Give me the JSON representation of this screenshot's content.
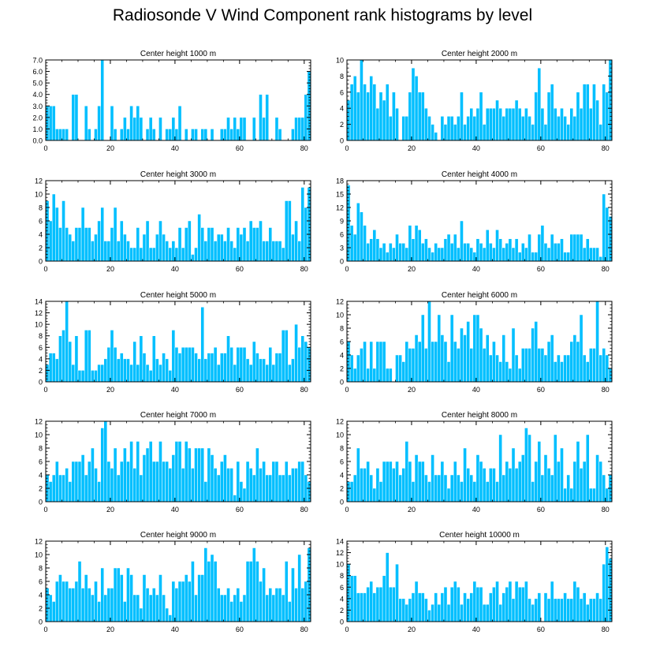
{
  "title": "Radiosonde V Wind Component rank histograms by level",
  "bar_color": "#00BFFF",
  "chart_data": [
    {
      "type": "bar",
      "title": "Center height 1000 m",
      "xlim": [
        0,
        82
      ],
      "xticks": [
        0,
        20,
        40,
        60,
        80
      ],
      "xlabel": "",
      "ylabel": "",
      "ylim": [
        0,
        7
      ],
      "yticks": [
        "0.0",
        "1.0",
        "2.0",
        "3.0",
        "4.0",
        "5.0",
        "6.0",
        "7.0"
      ],
      "values": [
        3,
        3,
        3,
        1,
        1,
        1,
        1,
        0,
        4,
        4,
        0,
        0,
        3,
        1,
        0,
        1,
        3,
        7,
        0,
        0,
        3,
        1,
        0,
        1,
        2,
        1,
        3,
        2,
        3,
        2,
        0,
        1,
        2,
        1,
        0,
        2,
        0,
        1,
        1,
        2,
        1,
        3,
        0,
        1,
        0,
        1,
        1,
        0,
        1,
        1,
        0,
        1,
        0,
        0,
        1,
        1,
        2,
        1,
        2,
        1,
        2,
        2,
        0,
        0,
        2,
        0,
        4,
        2,
        4,
        0,
        0,
        2,
        1,
        0,
        0,
        0,
        1,
        2,
        2,
        2,
        4,
        6
      ]
    },
    {
      "type": "bar",
      "title": "Center height 2000 m",
      "xlim": [
        0,
        82
      ],
      "xticks": [
        0,
        20,
        40,
        60,
        80
      ],
      "xlabel": "",
      "ylabel": "",
      "ylim": [
        0,
        10
      ],
      "yticks": [
        "0",
        "2",
        "4",
        "6",
        "8",
        "10"
      ],
      "values": [
        5,
        7,
        8,
        6,
        10,
        7,
        6,
        8,
        7,
        4,
        6,
        5,
        7,
        3,
        6,
        4,
        0,
        3,
        3,
        6,
        9,
        8,
        6,
        6,
        4,
        3,
        2,
        1,
        0,
        3,
        2,
        3,
        3,
        2,
        3,
        6,
        2,
        3,
        4,
        3,
        4,
        6,
        2,
        4,
        4,
        4,
        5,
        4,
        3,
        4,
        4,
        4,
        5,
        4,
        3,
        4,
        3,
        2,
        6,
        9,
        4,
        2,
        6,
        7,
        4,
        3,
        4,
        3,
        2,
        4,
        3,
        6,
        4,
        7,
        7,
        4,
        7,
        5,
        2,
        7,
        6,
        10
      ]
    },
    {
      "type": "bar",
      "title": "Center height 3000 m",
      "xlim": [
        0,
        82
      ],
      "xticks": [
        0,
        20,
        40,
        60,
        80
      ],
      "xlabel": "",
      "ylabel": "",
      "ylim": [
        0,
        12
      ],
      "yticks": [
        "0",
        "2",
        "4",
        "6",
        "8",
        "10",
        "12"
      ],
      "values": [
        9,
        6,
        10,
        8,
        5,
        9,
        5,
        4,
        3,
        5,
        5,
        8,
        5,
        5,
        3,
        4,
        6,
        8,
        3,
        3,
        5,
        8,
        3,
        6,
        4,
        3,
        2,
        2,
        5,
        2,
        4,
        6,
        2,
        2,
        4,
        6,
        4,
        3,
        2,
        3,
        2,
        5,
        2,
        5,
        6,
        1,
        2,
        7,
        5,
        3,
        5,
        5,
        3,
        4,
        4,
        3,
        5,
        3,
        2,
        5,
        4,
        5,
        3,
        6,
        5,
        5,
        6,
        3,
        3,
        5,
        3,
        3,
        3,
        2,
        9,
        9,
        4,
        6,
        3,
        11,
        8,
        11
      ]
    },
    {
      "type": "bar",
      "title": "Center height 4000 m",
      "xlim": [
        0,
        82
      ],
      "xticks": [
        0,
        20,
        40,
        60,
        80
      ],
      "xlabel": "",
      "ylabel": "",
      "ylim": [
        0,
        18
      ],
      "yticks": [
        "0",
        "3",
        "6",
        "9",
        "12",
        "15",
        "18"
      ],
      "values": [
        17,
        8,
        6,
        13,
        11,
        8,
        4,
        5,
        7,
        5,
        3,
        4,
        2,
        4,
        3,
        6,
        4,
        4,
        3,
        8,
        5,
        8,
        7,
        4,
        5,
        3,
        2,
        4,
        3,
        3,
        5,
        6,
        4,
        6,
        3,
        9,
        4,
        4,
        3,
        2,
        5,
        4,
        3,
        7,
        4,
        3,
        7,
        5,
        3,
        4,
        5,
        3,
        5,
        2,
        4,
        3,
        6,
        2,
        2,
        6,
        8,
        4,
        3,
        6,
        4,
        4,
        5,
        2,
        2,
        6,
        6,
        6,
        6,
        3,
        5,
        3,
        3,
        3,
        1,
        15,
        12,
        10
      ]
    },
    {
      "type": "bar",
      "title": "Center height 5000 m",
      "xlim": [
        0,
        82
      ],
      "xticks": [
        0,
        20,
        40,
        60,
        80
      ],
      "xlabel": "",
      "ylabel": "",
      "ylim": [
        0,
        14
      ],
      "yticks": [
        "0",
        "2",
        "4",
        "6",
        "8",
        "10",
        "12",
        "14"
      ],
      "values": [
        3,
        5,
        5,
        4,
        8,
        9,
        14,
        7,
        3,
        8,
        2,
        2,
        9,
        9,
        2,
        2,
        3,
        3,
        4,
        6,
        9,
        6,
        4,
        5,
        4,
        4,
        3,
        7,
        3,
        8,
        5,
        3,
        2,
        8,
        4,
        3,
        5,
        4,
        2,
        9,
        6,
        5,
        6,
        6,
        6,
        6,
        5,
        4,
        13,
        4,
        5,
        5,
        6,
        3,
        5,
        5,
        8,
        6,
        3,
        6,
        6,
        6,
        4,
        3,
        7,
        5,
        4,
        4,
        3,
        6,
        3,
        5,
        5,
        9,
        9,
        3,
        4,
        10,
        6,
        8,
        7,
        6
      ]
    },
    {
      "type": "bar",
      "title": "Center height 6000 m",
      "xlim": [
        0,
        82
      ],
      "xticks": [
        0,
        20,
        40,
        60,
        80
      ],
      "xlabel": "",
      "ylabel": "",
      "ylim": [
        0,
        12
      ],
      "yticks": [
        "0",
        "2",
        "4",
        "6",
        "8",
        "10",
        "12"
      ],
      "values": [
        6,
        4,
        2,
        4,
        5,
        6,
        2,
        6,
        2,
        6,
        6,
        6,
        2,
        2,
        0,
        4,
        4,
        3,
        6,
        5,
        5,
        7,
        6,
        10,
        5,
        12,
        6,
        6,
        10,
        7,
        6,
        3,
        10,
        6,
        5,
        8,
        7,
        9,
        5,
        10,
        10,
        8,
        5,
        7,
        4,
        6,
        4,
        3,
        7,
        3,
        2,
        8,
        4,
        2,
        5,
        5,
        5,
        8,
        9,
        5,
        5,
        4,
        6,
        7,
        3,
        4,
        3,
        4,
        4,
        6,
        7,
        6,
        10,
        4,
        3,
        5,
        5,
        12,
        4,
        5,
        4,
        2
      ]
    },
    {
      "type": "bar",
      "title": "Center height 7000 m",
      "xlim": [
        0,
        82
      ],
      "xticks": [
        0,
        20,
        40,
        60,
        80
      ],
      "xlabel": "",
      "ylabel": "",
      "ylim": [
        0,
        12
      ],
      "yticks": [
        "0",
        "2",
        "4",
        "6",
        "8",
        "10",
        "12"
      ],
      "values": [
        4,
        3,
        4,
        6,
        4,
        4,
        5,
        3,
        6,
        6,
        6,
        7,
        4,
        6,
        8,
        5,
        3,
        11,
        12,
        6,
        5,
        8,
        4,
        6,
        8,
        6,
        9,
        5,
        9,
        4,
        7,
        8,
        9,
        6,
        6,
        9,
        6,
        6,
        5,
        7,
        9,
        9,
        5,
        9,
        8,
        5,
        8,
        8,
        8,
        3,
        8,
        7,
        5,
        4,
        6,
        7,
        5,
        5,
        1,
        6,
        3,
        2,
        6,
        5,
        4,
        8,
        5,
        6,
        4,
        4,
        6,
        6,
        4,
        4,
        6,
        4,
        5,
        5,
        6,
        6,
        4,
        3
      ]
    },
    {
      "type": "bar",
      "title": "Center height 8000 m",
      "xlim": [
        0,
        82
      ],
      "xticks": [
        0,
        20,
        40,
        60,
        80
      ],
      "xlabel": "",
      "ylabel": "",
      "ylim": [
        0,
        12
      ],
      "yticks": [
        "0",
        "2",
        "4",
        "6",
        "8",
        "10",
        "12"
      ],
      "values": [
        3,
        3,
        4,
        8,
        5,
        5,
        6,
        4,
        2,
        5,
        3,
        6,
        6,
        6,
        5,
        6,
        4,
        5,
        9,
        6,
        3,
        7,
        6,
        6,
        4,
        3,
        7,
        4,
        4,
        6,
        4,
        2,
        4,
        6,
        4,
        3,
        8,
        5,
        4,
        3,
        7,
        6,
        5,
        3,
        5,
        5,
        3,
        10,
        4,
        6,
        5,
        8,
        5,
        6,
        7,
        11,
        10,
        3,
        6,
        9,
        4,
        7,
        5,
        4,
        10,
        6,
        8,
        2,
        4,
        2,
        6,
        9,
        5,
        6,
        10,
        2,
        2,
        7,
        6,
        4,
        2,
        4
      ]
    },
    {
      "type": "bar",
      "title": "Center height 9000 m",
      "xlim": [
        0,
        82
      ],
      "xticks": [
        0,
        20,
        40,
        60,
        80
      ],
      "xlabel": "",
      "ylabel": "",
      "ylim": [
        0,
        12
      ],
      "yticks": [
        "0",
        "2",
        "4",
        "6",
        "8",
        "10",
        "12"
      ],
      "values": [
        5,
        4,
        3,
        6,
        7,
        6,
        6,
        5,
        5,
        6,
        9,
        5,
        7,
        5,
        4,
        6,
        3,
        8,
        4,
        5,
        5,
        8,
        8,
        7,
        3,
        8,
        7,
        4,
        4,
        2,
        7,
        5,
        4,
        5,
        4,
        7,
        4,
        2,
        1,
        6,
        5,
        6,
        6,
        7,
        6,
        9,
        4,
        7,
        7,
        11,
        9,
        10,
        9,
        5,
        4,
        4,
        5,
        3,
        4,
        5,
        3,
        4,
        9,
        9,
        11,
        9,
        6,
        8,
        4,
        5,
        4,
        5,
        5,
        4,
        9,
        3,
        8,
        5,
        10,
        5,
        6,
        11
      ]
    },
    {
      "type": "bar",
      "title": "Center height 10000 m",
      "xlim": [
        0,
        82
      ],
      "xticks": [
        0,
        20,
        40,
        60,
        80
      ],
      "xlabel": "",
      "ylabel": "",
      "ylim": [
        0,
        14
      ],
      "yticks": [
        "0",
        "2",
        "4",
        "6",
        "8",
        "10",
        "12",
        "14"
      ],
      "values": [
        10,
        8,
        8,
        5,
        5,
        5,
        6,
        7,
        5,
        6,
        6,
        8,
        12,
        6,
        6,
        10,
        4,
        4,
        3,
        4,
        5,
        7,
        5,
        5,
        4,
        2,
        3,
        5,
        3,
        5,
        6,
        3,
        6,
        7,
        6,
        3,
        5,
        4,
        5,
        7,
        6,
        6,
        3,
        3,
        5,
        6,
        7,
        3,
        5,
        6,
        7,
        4,
        7,
        6,
        6,
        7,
        4,
        3,
        4,
        5,
        0,
        5,
        4,
        7,
        4,
        4,
        4,
        5,
        4,
        4,
        7,
        6,
        4,
        5,
        3,
        4,
        4,
        5,
        4,
        10,
        13,
        11
      ]
    }
  ]
}
